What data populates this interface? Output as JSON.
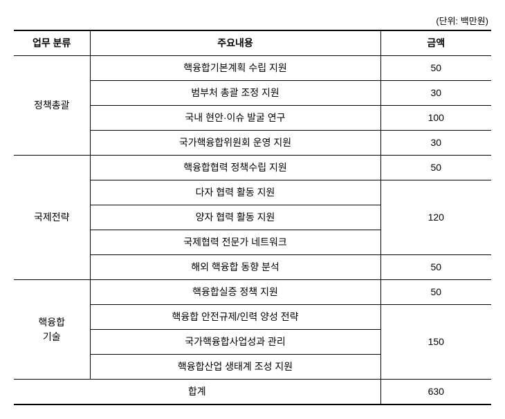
{
  "unit_label": "(단위: 백만원)",
  "headers": {
    "category": "업무 분류",
    "content": "주요내용",
    "amount": "금액"
  },
  "groups": [
    {
      "category": "정책총괄",
      "rows": [
        {
          "content": "핵융합기본계획 수립 지원",
          "amount": "50",
          "amount_rowspan": 1
        },
        {
          "content": "범부처 총괄 조정 지원",
          "amount": "30",
          "amount_rowspan": 1
        },
        {
          "content": "국내 현안·이슈 발굴 연구",
          "amount": "100",
          "amount_rowspan": 1
        },
        {
          "content": "국가핵융합위원회 운영 지원",
          "amount": "30",
          "amount_rowspan": 1
        }
      ]
    },
    {
      "category": "국제전략",
      "rows": [
        {
          "content": "핵융합협력 정책수립 지원",
          "amount": "50",
          "amount_rowspan": 1
        },
        {
          "content": "다자 협력 활동 지원",
          "amount": "120",
          "amount_rowspan": 3
        },
        {
          "content": "양자 협력 활동 지원"
        },
        {
          "content": "국제협력 전문가 네트워크"
        },
        {
          "content": "해외 핵융합 동향 분석",
          "amount": "50",
          "amount_rowspan": 1
        }
      ]
    },
    {
      "category": "핵융합\n기술",
      "rows": [
        {
          "content": "핵융합실증 정책 지원",
          "amount": "50",
          "amount_rowspan": 1
        },
        {
          "content": "핵융합 안전규제/인력 양성 전략",
          "amount": "150",
          "amount_rowspan": 3
        },
        {
          "content": "국가핵융합사업성과 관리"
        },
        {
          "content": "핵융합산업 생태계 조성 지원"
        }
      ]
    }
  ],
  "total": {
    "label": "합계",
    "amount": "630"
  }
}
